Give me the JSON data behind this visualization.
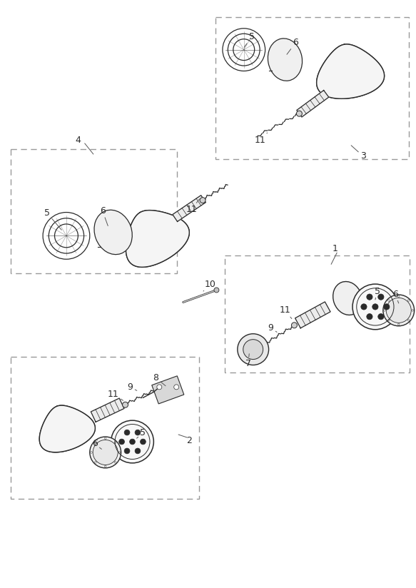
{
  "bg_color": "#ffffff",
  "line_color": "#2a2a2a",
  "dash_color": "#999999",
  "label_color": "#222222",
  "fig_width": 5.83,
  "fig_height": 8.24,
  "dpi": 100
}
